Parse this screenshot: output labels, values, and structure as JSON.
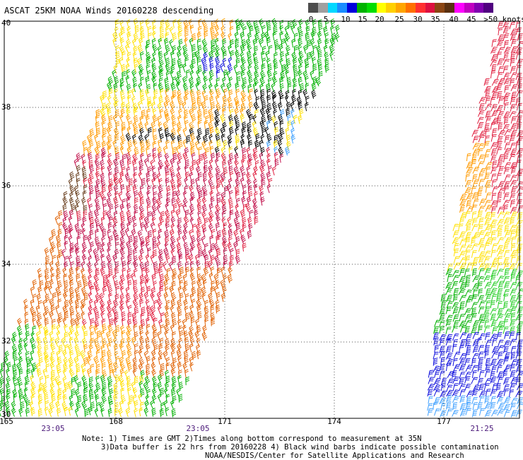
{
  "title": "ASCAT 25KM NOAA Winds 20160228 descending",
  "colorbar": {
    "labels": [
      "0",
      "5",
      "10",
      "15",
      "20",
      "25",
      "30",
      "35",
      "40",
      "45",
      ">50 knots"
    ],
    "colors": [
      "#4d4d4d",
      "#a0a0a0",
      "#00d8ff",
      "#1a8cff",
      "#0000dd",
      "#00b300",
      "#00dd00",
      "#ffff00",
      "#ffd000",
      "#ffa500",
      "#ff7000",
      "#ff3030",
      "#dd1040",
      "#8b4513",
      "#5a3010",
      "#ff00ff",
      "#c000c0",
      "#8000b0",
      "#500080"
    ]
  },
  "axes": {
    "lat_labels": [
      "40",
      "38",
      "36",
      "34",
      "32",
      "30"
    ],
    "lon_labels": [
      "165",
      "168",
      "171",
      "174",
      "177"
    ]
  },
  "times": [
    "23:05",
    "23:05",
    "21:25"
  ],
  "notes": {
    "line1": "Note: 1) Times are GMT 2)Times along bottom correspond to measurement at 35N",
    "line2": "3)Data buffer is 22 hrs from 20160228 4) Black wind barbs indicate possible contamination",
    "line3": "NOAA/NESDIS/Center for Satellite Applications and Research"
  },
  "legend_colors": {
    "light_blue": "#3fa0ff",
    "blue": "#1010dd",
    "green": "#00b000",
    "bright_green": "#20cc20",
    "yellow": "#ffe000",
    "orange": "#ff9a00",
    "dark_orange": "#e06000",
    "red": "#e02040",
    "crimson": "#c0104a",
    "brown": "#6a4020",
    "black": "#000000"
  }
}
